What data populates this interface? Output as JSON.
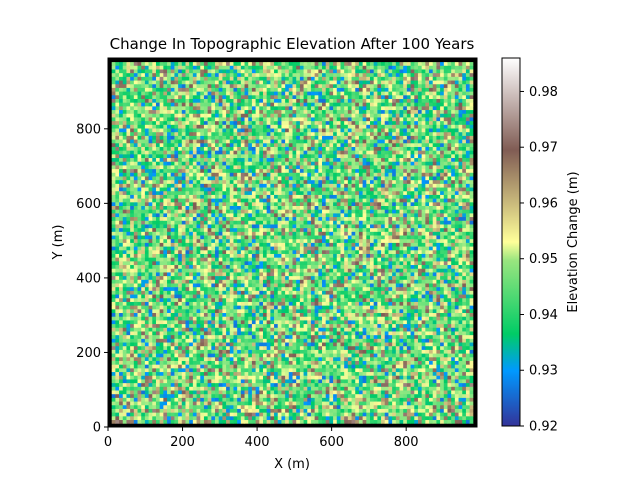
{
  "chart_data": {
    "type": "heatmap",
    "title": "Change In Topographic Elevation After 100 Years",
    "xlabel": "X (m)",
    "ylabel": "Y (m)",
    "xlim": [
      0,
      990
    ],
    "ylim": [
      0,
      990
    ],
    "x_ticks": [
      0,
      200,
      400,
      600,
      800
    ],
    "y_ticks": [
      0,
      200,
      400,
      600,
      800
    ],
    "grid_cells_x": 100,
    "grid_cells_y": 100,
    "cell_size_m": 10,
    "boundary_value": 0,
    "value_range": [
      0.92,
      0.986
    ],
    "colorbar": {
      "label": "Elevation Change (m)",
      "colormap": "terrain",
      "min": 0.92,
      "max": 0.986,
      "ticks": [
        0.92,
        0.93,
        0.94,
        0.95,
        0.96,
        0.97,
        0.98
      ]
    },
    "grid": false,
    "legend": "none"
  }
}
